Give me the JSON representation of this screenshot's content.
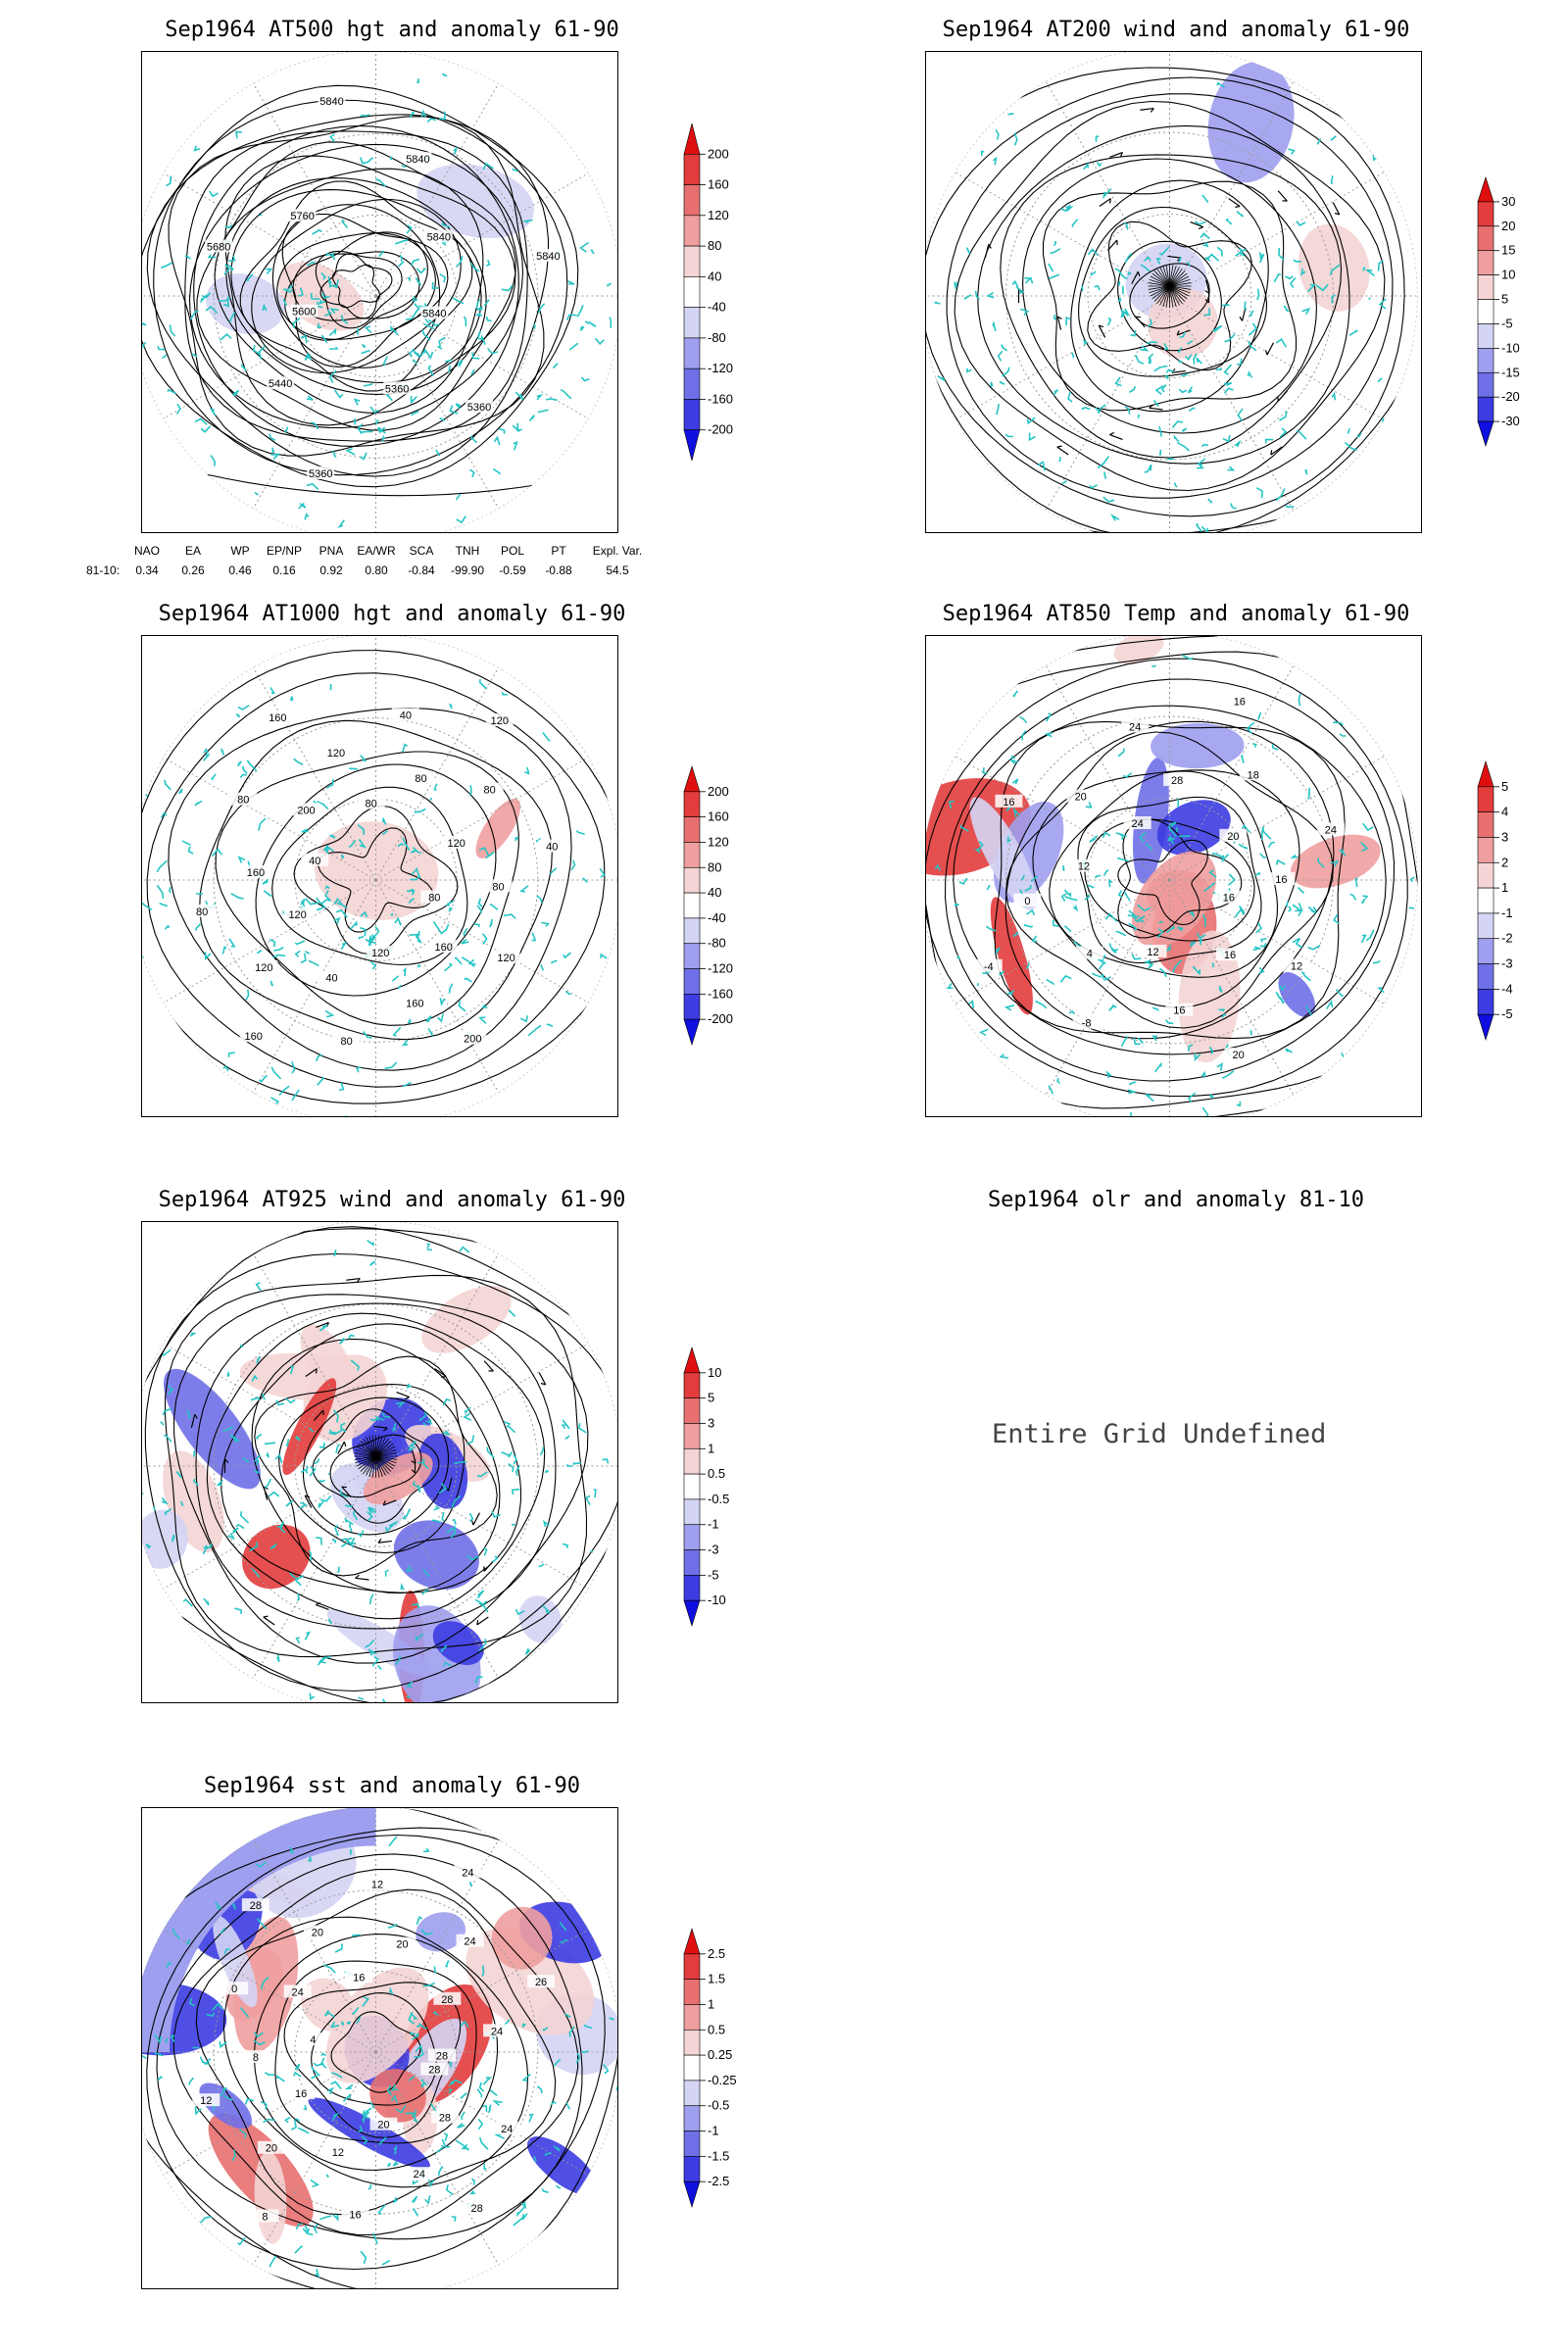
{
  "panels": [
    {
      "key": "p500",
      "title": "Sep1964 AT500 hgt and anomaly 61-90",
      "contour_labels": [
        "5840",
        "5360",
        "5360",
        "5360",
        "5440",
        "5600",
        "5680",
        "5760",
        "5840",
        "5840",
        "5840",
        "5840"
      ],
      "colorbar": [
        "200",
        "160",
        "120",
        "80",
        "40",
        "-40",
        "-80",
        "-120",
        "-160",
        "-200"
      ]
    },
    {
      "key": "p200",
      "title": "Sep1964 AT200 wind and anomaly 61-90",
      "contour_labels": [],
      "colorbar": [
        "30",
        "20",
        "15",
        "10",
        "5",
        "-5",
        "-10",
        "-15",
        "-20",
        "-30"
      ]
    },
    {
      "key": "p1000",
      "title": "Sep1964 AT1000 hgt and anomaly 61-90",
      "contour_labels": [
        "80",
        "120",
        "160",
        "200",
        "160",
        "120",
        "80",
        "40",
        "160",
        "120",
        "120",
        "80",
        "160",
        "40",
        "80",
        "200",
        "160",
        "120",
        "80",
        "40",
        "80",
        "120",
        "80",
        "120",
        "40",
        "80"
      ],
      "colorbar": [
        "200",
        "160",
        "120",
        "80",
        "40",
        "-40",
        "-80",
        "-120",
        "-160",
        "-200"
      ]
    },
    {
      "key": "p850",
      "title": "Sep1964 AT850 Temp and anomaly 61-90",
      "contour_labels": [
        "16",
        "12",
        "16",
        "20",
        "16",
        "12",
        "-8",
        "4",
        "-4",
        "0",
        "12",
        "16",
        "20",
        "24",
        "24",
        "28",
        "16",
        "18",
        "20",
        "24",
        "16"
      ],
      "colorbar": [
        "5",
        "4",
        "3",
        "2",
        "1",
        "-1",
        "-2",
        "-3",
        "-4",
        "-5"
      ]
    },
    {
      "key": "p925",
      "title": "Sep1964 AT925 wind and anomaly 61-90",
      "contour_labels": [],
      "colorbar": [
        "10",
        "5",
        "3",
        "1",
        "0.5",
        "-0.5",
        "-1",
        "-3",
        "-5",
        "-10"
      ]
    },
    {
      "key": "polr",
      "title": "Sep1964 olr and anomaly 81-10",
      "undefined_text": "Entire Grid Undefined"
    },
    {
      "key": "psst",
      "title": "Sep1964 sst and anomaly 61-90",
      "contour_labels": [
        "28",
        "24",
        "28",
        "28",
        "24",
        "20",
        "16",
        "12",
        "8",
        "20",
        "16",
        "12",
        "8",
        "4",
        "0",
        "24",
        "28",
        "20",
        "16",
        "12",
        "20",
        "24",
        "24",
        "28",
        "26",
        "24",
        "28"
      ],
      "colorbar": [
        "2.5",
        "1.5",
        "1",
        "0.5",
        "0.25",
        "-0.25",
        "-0.5",
        "-1",
        "-1.5",
        "-2.5"
      ]
    }
  ],
  "indices": {
    "headers": [
      "NAO",
      "EA",
      "WP",
      "EP/NP",
      "PNA",
      "EA/WR",
      "SCA",
      "TNH",
      "POL",
      "PT",
      "Expl. Var."
    ],
    "row_label": "81-10:",
    "values": [
      "0.34",
      "0.26",
      "0.46",
      "0.16",
      "0.92",
      "0.80",
      "-0.84",
      "-99.90",
      "-0.59",
      "-0.88",
      "54.5"
    ]
  },
  "colors": {
    "coast": "#25c4c4",
    "contour": "#000000",
    "grid": "#9a9a9a",
    "pos": [
      "#f4d4d4",
      "#ef9f9f",
      "#e86f6f",
      "#e23c3c",
      "#e00f0f"
    ],
    "neg": [
      "#d4d4f4",
      "#9f9fef",
      "#6f6fe8",
      "#3c3ce2",
      "#0f0fe0"
    ]
  }
}
